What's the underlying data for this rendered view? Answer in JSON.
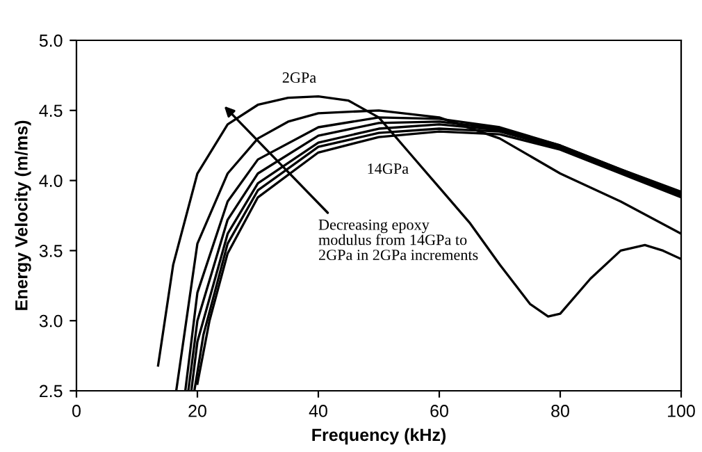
{
  "chart_data": {
    "type": "line",
    "xlabel": "Frequency (kHz)",
    "ylabel": "Energy Velocity (m/ms)",
    "xlim": [
      0,
      100
    ],
    "ylim": [
      2.5,
      5.0
    ],
    "xticks": [
      0,
      20,
      40,
      60,
      80,
      100
    ],
    "yticks": [
      2.5,
      {
        "value": 3,
        "label": "3.0"
      },
      3.5,
      {
        "value": 4,
        "label": "4.0"
      },
      4.5,
      {
        "value": 5,
        "label": "5.0"
      }
    ],
    "grid": false,
    "marker": "none",
    "line_style": "solid",
    "annotations": [
      "2GPa",
      "14GPa",
      "Decreasing epoxy\nmodulus from 14GPa to\n2GPa in 2GPa increments"
    ],
    "series": [
      {
        "color": "#000000",
        "x": [
          13.5,
          16,
          20,
          25,
          30,
          35,
          40,
          45,
          50,
          55,
          60,
          65,
          70,
          75,
          78,
          80,
          85,
          90,
          94,
          97,
          100
        ],
        "values": [
          2.68,
          3.4,
          4.05,
          4.4,
          4.54,
          4.59,
          4.6,
          4.57,
          4.45,
          4.2,
          3.95,
          3.7,
          3.4,
          3.12,
          3.03,
          3.05,
          3.3,
          3.5,
          3.54,
          3.5,
          3.44
        ]
      },
      {
        "color": "#000000",
        "x": [
          16.5,
          20,
          25,
          30,
          35,
          40,
          50,
          60,
          70,
          80,
          90,
          100
        ],
        "values": [
          2.5,
          3.55,
          4.05,
          4.3,
          4.42,
          4.48,
          4.5,
          4.45,
          4.3,
          4.05,
          3.85,
          3.62
        ]
      },
      {
        "color": "#000000",
        "x": [
          18,
          20,
          25,
          30,
          40,
          50,
          60,
          70,
          80,
          90,
          100
        ],
        "values": [
          2.5,
          3.2,
          3.85,
          4.15,
          4.38,
          4.45,
          4.44,
          4.38,
          4.25,
          4.08,
          3.92
        ]
      },
      {
        "color": "#000000",
        "x": [
          18.5,
          20,
          25,
          30,
          40,
          50,
          60,
          70,
          80,
          90,
          100
        ],
        "values": [
          2.5,
          3.0,
          3.72,
          4.05,
          4.32,
          4.41,
          4.42,
          4.37,
          4.25,
          4.08,
          3.91
        ]
      },
      {
        "color": "#000000",
        "x": [
          19,
          20,
          25,
          30,
          40,
          50,
          60,
          70,
          80,
          90,
          100
        ],
        "values": [
          2.5,
          2.85,
          3.62,
          3.98,
          4.27,
          4.37,
          4.4,
          4.36,
          4.24,
          4.07,
          3.9
        ]
      },
      {
        "color": "#000000",
        "x": [
          19.5,
          21,
          25,
          30,
          40,
          50,
          60,
          70,
          80,
          90,
          100
        ],
        "values": [
          2.5,
          2.9,
          3.55,
          3.93,
          4.24,
          4.34,
          4.37,
          4.35,
          4.23,
          4.06,
          3.89
        ]
      },
      {
        "color": "#000000",
        "x": [
          20,
          22,
          25,
          30,
          40,
          50,
          60,
          70,
          80,
          90,
          100
        ],
        "values": [
          2.55,
          3.0,
          3.48,
          3.88,
          4.2,
          4.31,
          4.35,
          4.33,
          4.22,
          4.05,
          3.88
        ]
      }
    ]
  }
}
